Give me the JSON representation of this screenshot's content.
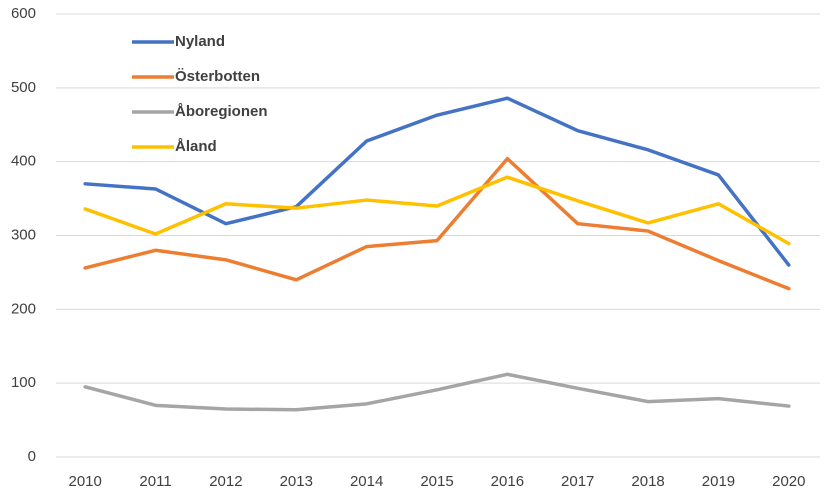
{
  "chart_data": {
    "type": "line",
    "categories": [
      "2010",
      "2011",
      "2012",
      "2013",
      "2014",
      "2015",
      "2016",
      "2017",
      "2018",
      "2019",
      "2020"
    ],
    "series": [
      {
        "name": "Nyland",
        "color": "#4472c4",
        "values": [
          370,
          363,
          316,
          339,
          428,
          463,
          486,
          442,
          416,
          382,
          260
        ]
      },
      {
        "name": "Österbotten",
        "color": "#ed7d31",
        "values": [
          256,
          280,
          267,
          240,
          285,
          293,
          404,
          316,
          306,
          266,
          228
        ]
      },
      {
        "name": "Åboregionen",
        "color": "#a5a5a5",
        "values": [
          95,
          70,
          65,
          64,
          72,
          91,
          112,
          93,
          75,
          79,
          69
        ]
      },
      {
        "name": "Åland",
        "color": "#ffc000",
        "values": [
          336,
          302,
          343,
          337,
          348,
          340,
          379,
          347,
          317,
          343,
          289
        ]
      }
    ],
    "ylim": [
      0,
      600
    ],
    "yticks": [
      0,
      100,
      200,
      300,
      400,
      500,
      600
    ],
    "grid": true,
    "legend": "upper left"
  }
}
